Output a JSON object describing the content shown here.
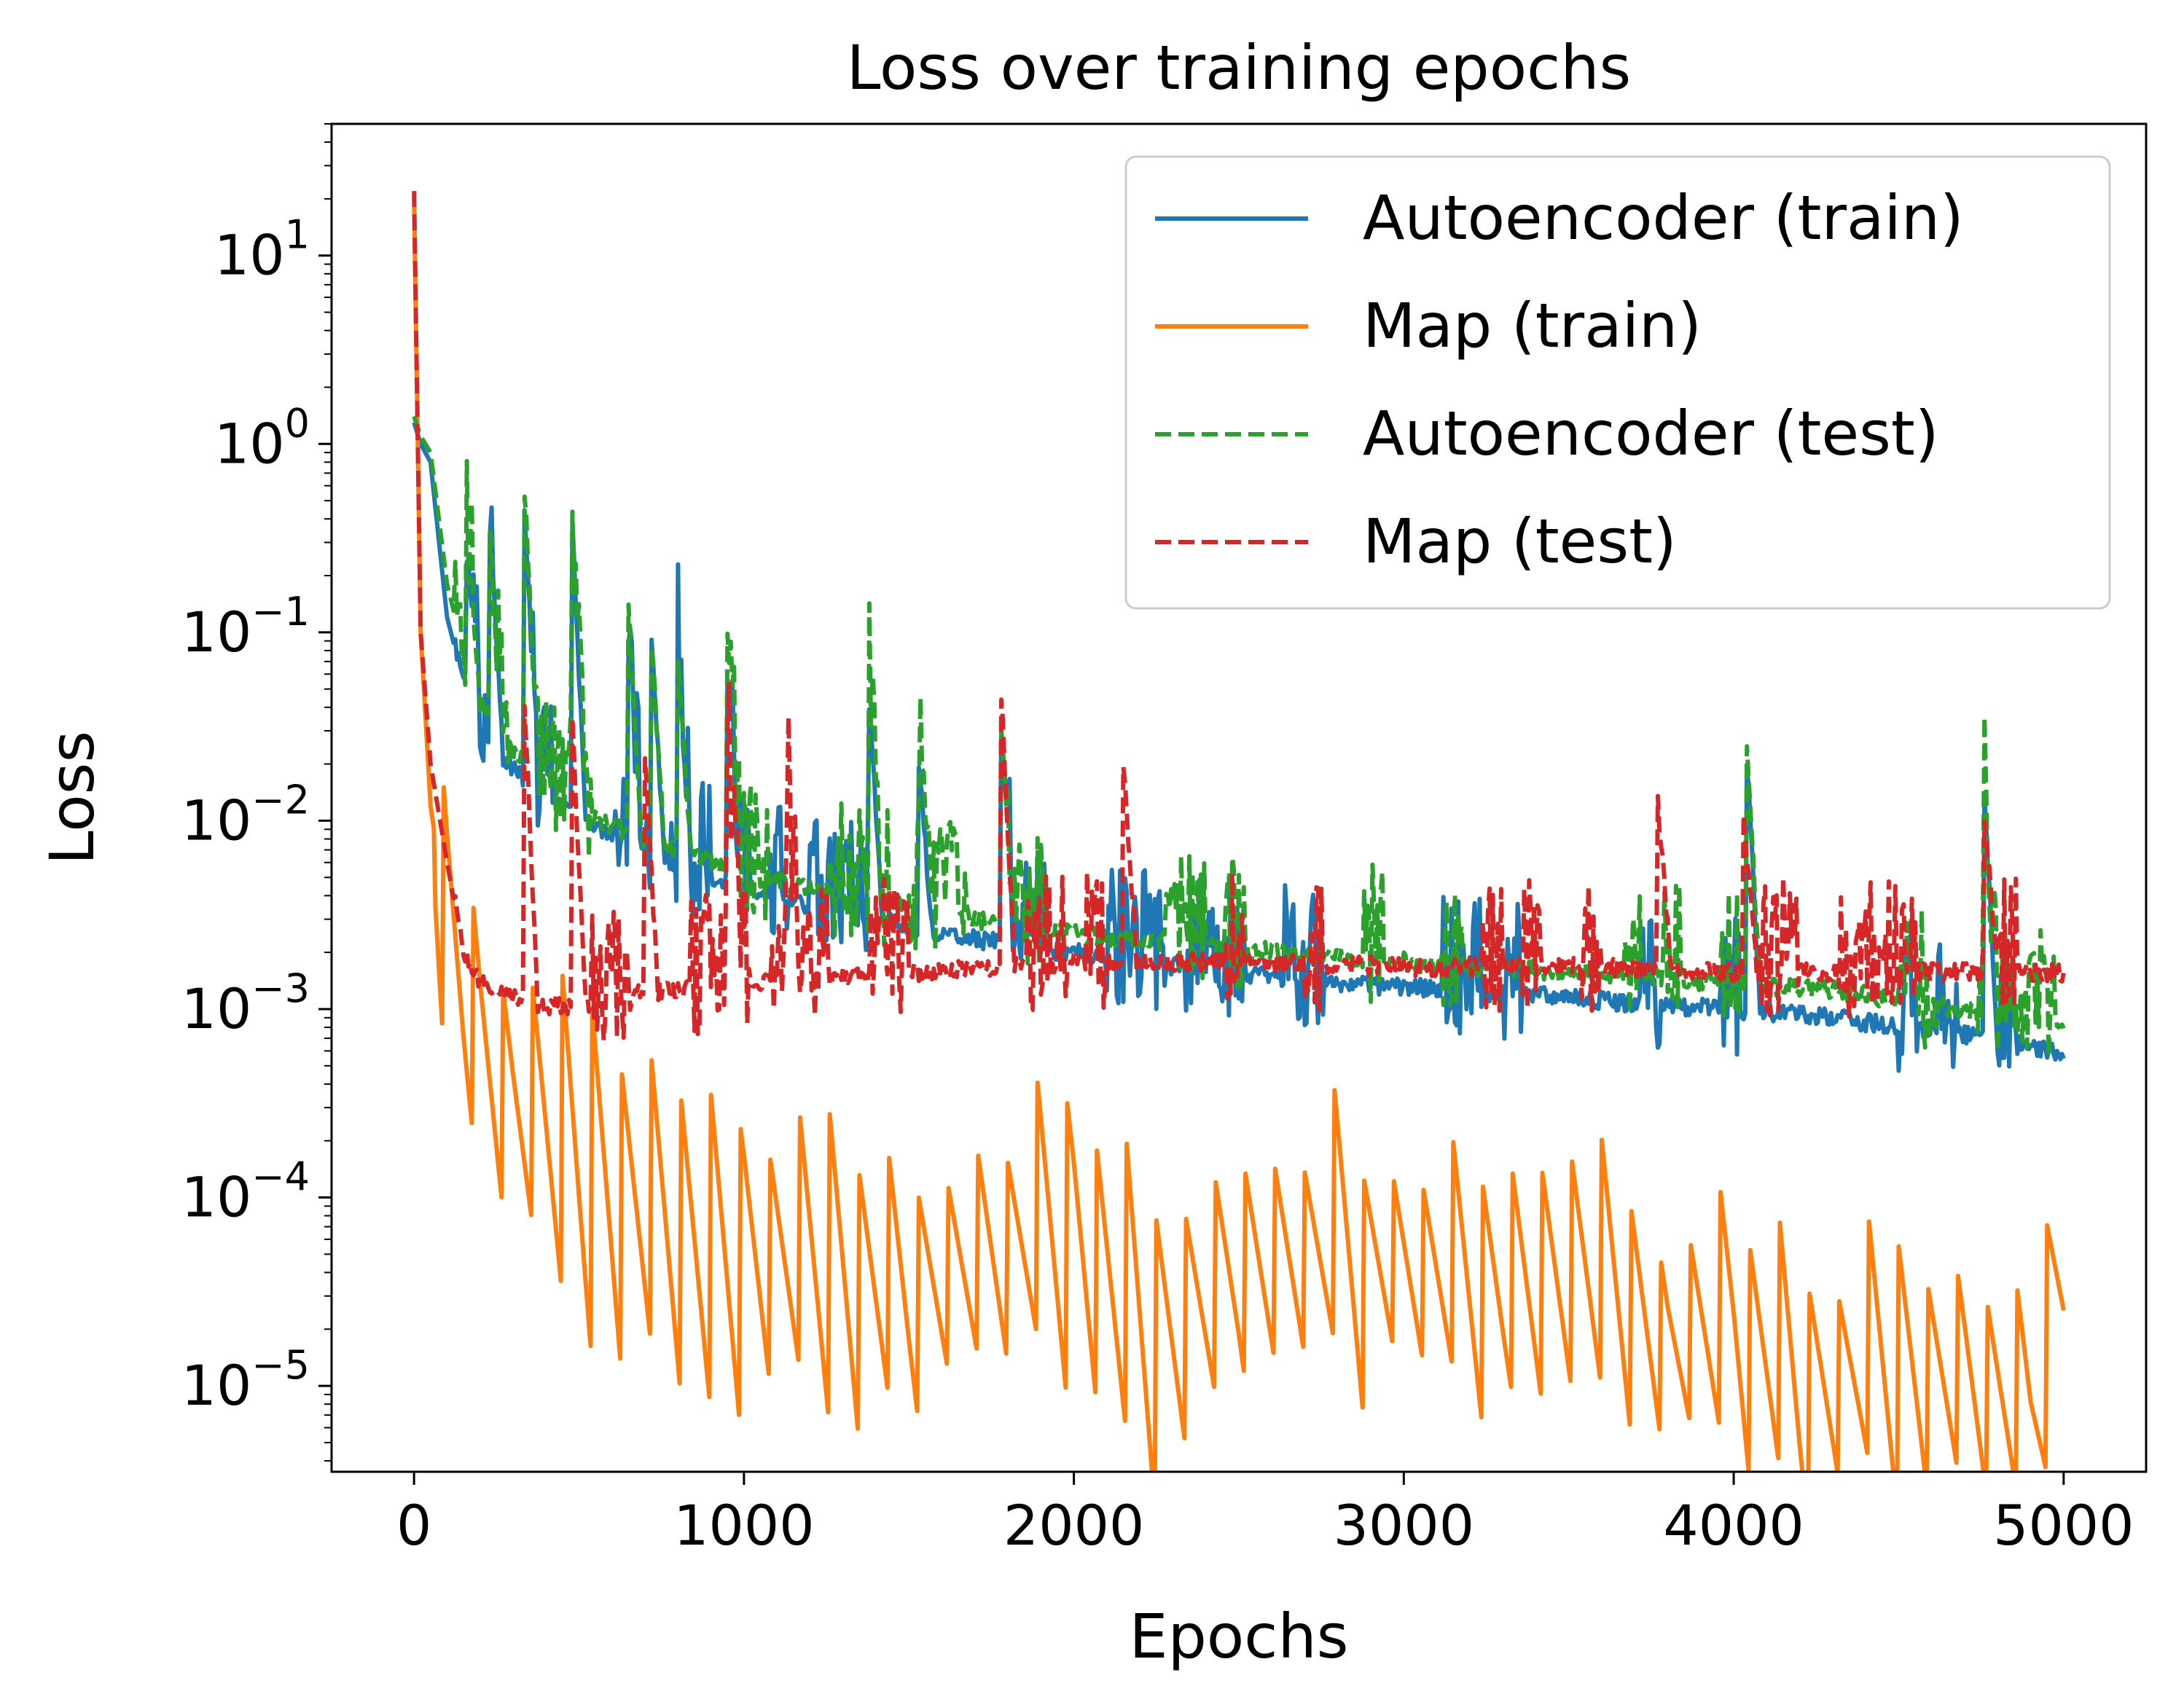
{
  "chart_data": {
    "type": "line",
    "title": "Loss over training epochs",
    "xlabel": "Epochs",
    "ylabel": "Loss",
    "xlim": [
      -250,
      5250
    ],
    "ylim": [
      3.5e-06,
      50
    ],
    "yscale": "log",
    "grid": false,
    "legend_position": "top-right",
    "x_ticks": [
      {
        "value": 0,
        "label": "0"
      },
      {
        "value": 1000,
        "label": "1000"
      },
      {
        "value": 2000,
        "label": "2000"
      },
      {
        "value": 3000,
        "label": "3000"
      },
      {
        "value": 4000,
        "label": "4000"
      },
      {
        "value": 5000,
        "label": "5000"
      }
    ],
    "y_ticks": [
      {
        "value": 10,
        "base": "10",
        "exp": "1"
      },
      {
        "value": 1,
        "base": "10",
        "exp": "0"
      },
      {
        "value": 0.1,
        "base": "10",
        "exp": "−1"
      },
      {
        "value": 0.01,
        "base": "10",
        "exp": "−2"
      },
      {
        "value": 0.001,
        "base": "10",
        "exp": "−3"
      },
      {
        "value": 0.0001,
        "base": "10",
        "exp": "−4"
      },
      {
        "value": 1e-05,
        "base": "10",
        "exp": "−5"
      }
    ],
    "series": [
      {
        "name": "Autoencoder (train)",
        "color": "#1f77b4",
        "dash": "solid",
        "x": [
          0,
          20,
          50,
          100,
          150,
          200,
          300,
          400,
          500,
          600,
          700,
          800,
          1000,
          1200,
          1500,
          1800,
          2000,
          2200,
          2500,
          2800,
          3000,
          3200,
          3500,
          3800,
          4000,
          4300,
          4600,
          4800,
          5000
        ],
        "y": [
          1.3,
          1.0,
          0.8,
          0.12,
          0.055,
          0.03,
          0.018,
          0.013,
          0.01,
          0.008,
          0.0065,
          0.0055,
          0.0042,
          0.0034,
          0.0026,
          0.0021,
          0.0019,
          0.0017,
          0.0015,
          0.0013,
          0.00125,
          0.0012,
          0.0011,
          0.001,
          0.00095,
          0.00085,
          0.00075,
          0.00065,
          0.00055
        ],
        "spikes": [
          [
            160,
            0.25
          ],
          [
            230,
            0.35
          ],
          [
            335,
            0.45
          ],
          [
            480,
            0.35
          ],
          [
            650,
            0.12
          ],
          [
            720,
            0.08
          ],
          [
            800,
            0.07
          ],
          [
            950,
            0.06
          ],
          [
            1380,
            0.04
          ],
          [
            1530,
            0.02
          ],
          [
            1780,
            0.03
          ],
          [
            4040,
            0.02
          ],
          [
            4760,
            0.012
          ]
        ]
      },
      {
        "name": "Map (train)",
        "color": "#ff7f0e",
        "dash": "solid",
        "x": [
          0,
          20,
          50,
          100,
          150,
          200,
          300,
          400,
          500,
          600,
          700,
          800,
          900,
          1000,
          1200,
          1500,
          1800,
          2000,
          2240,
          2500,
          2800,
          3000,
          3300,
          3600,
          3800,
          4000,
          4200,
          4500,
          4700,
          4900,
          5000
        ],
        "y": [
          20,
          0.1,
          0.012,
          0.003,
          0.0011,
          0.0006,
          0.0003,
          0.0002,
          0.00013,
          0.0001,
          8e-05,
          6e-05,
          4e-05,
          5e-05,
          4e-05,
          3e-05,
          5e-05,
          6e-05,
          1.5e-05,
          4e-05,
          5e-05,
          4e-05,
          3e-05,
          4e-05,
          1.5e-05,
          2e-05,
          9e-06,
          1.2e-05,
          1e-05,
          7e-06,
          3e-05
        ],
        "osc_amp": 1.4
      },
      {
        "name": "Autoencoder (test)",
        "color": "#2ca02c",
        "dash": "dashed",
        "x": [
          0,
          20,
          50,
          100,
          150,
          200,
          300,
          400,
          500,
          600,
          700,
          800,
          1000,
          1200,
          1500,
          1800,
          2000,
          2200,
          2500,
          2800,
          3000,
          3200,
          3500,
          3800,
          4000,
          4300,
          4600,
          4800,
          5000
        ],
        "y": [
          1.4,
          1.1,
          0.9,
          0.18,
          0.08,
          0.04,
          0.022,
          0.015,
          0.011,
          0.009,
          0.0075,
          0.0065,
          0.005,
          0.0042,
          0.0033,
          0.0027,
          0.0024,
          0.0022,
          0.002,
          0.0018,
          0.0017,
          0.0016,
          0.0015,
          0.0014,
          0.0013,
          0.0012,
          0.001,
          0.0009,
          0.0008
        ],
        "spikes": [
          [
            160,
            0.3
          ],
          [
            230,
            0.35
          ],
          [
            335,
            0.55
          ],
          [
            480,
            0.42
          ],
          [
            650,
            0.13
          ],
          [
            720,
            0.08
          ],
          [
            800,
            0.07
          ],
          [
            950,
            0.085
          ],
          [
            1380,
            0.045
          ],
          [
            1530,
            0.02
          ],
          [
            1780,
            0.03
          ],
          [
            4040,
            0.022
          ],
          [
            4760,
            0.013
          ]
        ]
      },
      {
        "name": "Map (test)",
        "color": "#d62728",
        "dash": "dashed",
        "x": [
          0,
          20,
          50,
          100,
          150,
          200,
          300,
          400,
          500,
          600,
          800,
          1000,
          1200,
          1500,
          1800,
          2000,
          2500,
          3000,
          3500,
          4000,
          4500,
          5000
        ],
        "y": [
          22,
          0.1,
          0.02,
          0.006,
          0.002,
          0.0013,
          0.0011,
          0.001,
          0.001,
          0.0011,
          0.0012,
          0.0013,
          0.0014,
          0.0015,
          0.0016,
          0.0017,
          0.0017,
          0.0016,
          0.0016,
          0.0015,
          0.0015,
          0.0015
        ],
        "spikes": [
          [
            335,
            0.04
          ],
          [
            480,
            0.03
          ],
          [
            700,
            0.02
          ],
          [
            950,
            0.025
          ],
          [
            1130,
            0.015
          ],
          [
            1780,
            0.045
          ],
          [
            2150,
            0.02
          ],
          [
            3770,
            0.012
          ],
          [
            4030,
            0.01
          ],
          [
            4760,
            0.01
          ]
        ]
      }
    ]
  }
}
